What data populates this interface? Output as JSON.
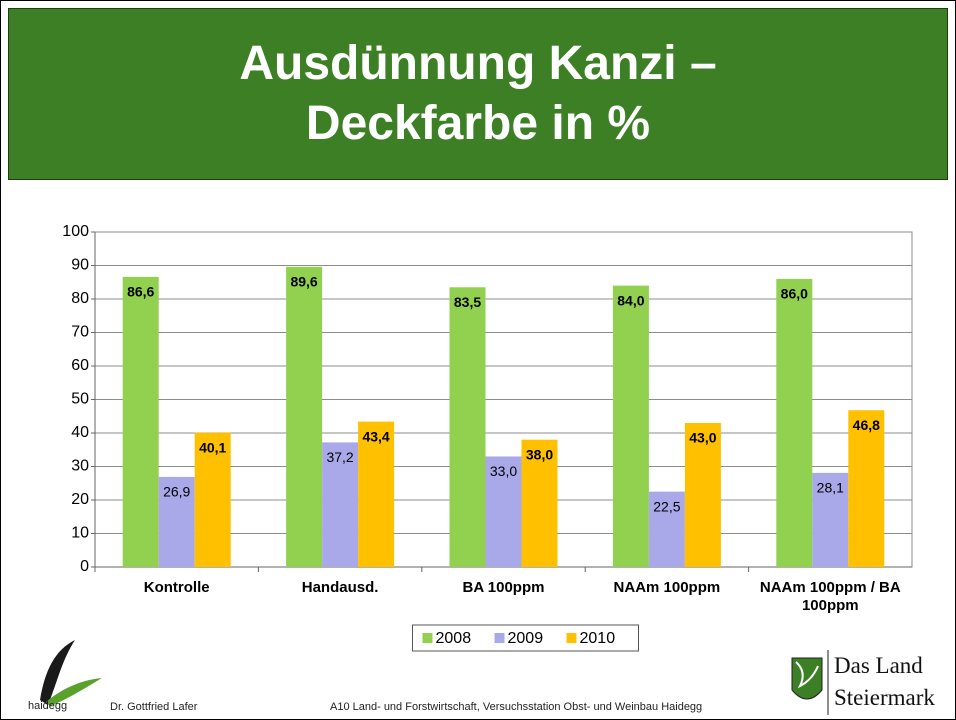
{
  "chart_data": {
    "type": "bar",
    "title": "Ausdünnung Kanzi – Deckfarbe in %",
    "categories": [
      "Kontrolle",
      "Handausd.",
      "BA 100ppm",
      "NAAm 100ppm",
      "NAAm 100ppm / BA 100ppm"
    ],
    "series": [
      {
        "name": "2008",
        "color": "#92d050",
        "values": [
          86.6,
          89.6,
          83.5,
          84.0,
          86.0
        ],
        "value_labels": [
          "86,6",
          "89,6",
          "83,5",
          "84,0",
          "86,0"
        ]
      },
      {
        "name": "2009",
        "color": "#a9a9ea",
        "values": [
          26.9,
          37.2,
          33.0,
          22.5,
          28.1
        ],
        "value_labels": [
          "26,9",
          "37,2",
          "33,0",
          "22,5",
          "28,1"
        ]
      },
      {
        "name": "2010",
        "color": "#ffc000",
        "values": [
          40.1,
          43.4,
          38.0,
          43.0,
          46.8
        ],
        "value_labels": [
          "40,1",
          "43,4",
          "38,0",
          "43,0",
          "46,8"
        ]
      }
    ],
    "ylim": [
      0,
      100
    ],
    "yticks": [
      0,
      10,
      20,
      30,
      40,
      50,
      60,
      70,
      80,
      90,
      100
    ],
    "grid": true,
    "legend": "bottom"
  },
  "footer": {
    "logo": "haidegg",
    "author": "Dr. Gottfried Lafer",
    "institution": "A10 Land- und Forstwirtschaft, Versuchsstation Obst- und Weinbau Haidegg",
    "land": [
      "Das Land",
      "Steiermark"
    ]
  }
}
